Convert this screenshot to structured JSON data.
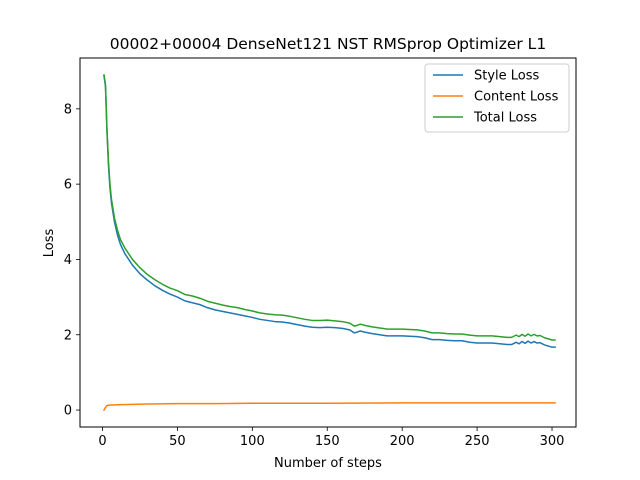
{
  "chart_data": {
    "type": "line",
    "title": "00002+00004 DenseNet121 NST RMSprop Optimizer L1",
    "xlabel": "Number of steps",
    "ylabel": "Loss",
    "xlim": [
      -15,
      316
    ],
    "ylim": [
      -0.45,
      9.35
    ],
    "xticks": [
      0,
      50,
      100,
      150,
      200,
      250,
      300
    ],
    "yticks": [
      0,
      2,
      4,
      6,
      8
    ],
    "grid": false,
    "legend_position": "top-right",
    "series": [
      {
        "name": "Style Loss",
        "color": "#1f77b4",
        "points": [
          [
            1,
            8.88
          ],
          [
            2,
            8.6
          ],
          [
            3,
            7.4
          ],
          [
            4,
            6.5
          ],
          [
            5,
            5.9
          ],
          [
            6,
            5.5
          ],
          [
            8,
            5.0
          ],
          [
            10,
            4.65
          ],
          [
            12,
            4.4
          ],
          [
            15,
            4.15
          ],
          [
            20,
            3.85
          ],
          [
            25,
            3.62
          ],
          [
            30,
            3.45
          ],
          [
            35,
            3.3
          ],
          [
            40,
            3.18
          ],
          [
            45,
            3.08
          ],
          [
            50,
            3.0
          ],
          [
            55,
            2.9
          ],
          [
            60,
            2.85
          ],
          [
            65,
            2.8
          ],
          [
            70,
            2.72
          ],
          [
            75,
            2.66
          ],
          [
            80,
            2.62
          ],
          [
            85,
            2.58
          ],
          [
            90,
            2.54
          ],
          [
            95,
            2.5
          ],
          [
            100,
            2.46
          ],
          [
            105,
            2.41
          ],
          [
            110,
            2.38
          ],
          [
            115,
            2.35
          ],
          [
            120,
            2.34
          ],
          [
            125,
            2.31
          ],
          [
            130,
            2.27
          ],
          [
            135,
            2.23
          ],
          [
            140,
            2.2
          ],
          [
            145,
            2.19
          ],
          [
            150,
            2.2
          ],
          [
            155,
            2.19
          ],
          [
            160,
            2.17
          ],
          [
            165,
            2.13
          ],
          [
            168,
            2.05
          ],
          [
            170,
            2.07
          ],
          [
            172,
            2.1
          ],
          [
            175,
            2.07
          ],
          [
            180,
            2.03
          ],
          [
            185,
            2.0
          ],
          [
            190,
            1.97
          ],
          [
            195,
            1.97
          ],
          [
            200,
            1.97
          ],
          [
            205,
            1.96
          ],
          [
            210,
            1.95
          ],
          [
            215,
            1.92
          ],
          [
            220,
            1.87
          ],
          [
            225,
            1.87
          ],
          [
            230,
            1.85
          ],
          [
            235,
            1.84
          ],
          [
            240,
            1.84
          ],
          [
            245,
            1.8
          ],
          [
            250,
            1.78
          ],
          [
            255,
            1.78
          ],
          [
            260,
            1.78
          ],
          [
            265,
            1.76
          ],
          [
            270,
            1.74
          ],
          [
            273,
            1.74
          ],
          [
            276,
            1.8
          ],
          [
            278,
            1.76
          ],
          [
            280,
            1.82
          ],
          [
            282,
            1.77
          ],
          [
            284,
            1.83
          ],
          [
            286,
            1.78
          ],
          [
            288,
            1.82
          ],
          [
            290,
            1.78
          ],
          [
            292,
            1.79
          ],
          [
            295,
            1.73
          ],
          [
            300,
            1.67
          ],
          [
            302,
            1.67
          ]
        ]
      },
      {
        "name": "Content Loss",
        "color": "#ff7f0e",
        "points": [
          [
            1,
            0.0
          ],
          [
            2,
            0.07
          ],
          [
            3,
            0.12
          ],
          [
            5,
            0.13
          ],
          [
            10,
            0.14
          ],
          [
            20,
            0.15
          ],
          [
            30,
            0.16
          ],
          [
            50,
            0.17
          ],
          [
            75,
            0.17
          ],
          [
            100,
            0.18
          ],
          [
            150,
            0.18
          ],
          [
            200,
            0.19
          ],
          [
            250,
            0.19
          ],
          [
            302,
            0.19
          ]
        ]
      },
      {
        "name": "Total Loss",
        "color": "#2ca02c",
        "points": [
          [
            1,
            8.9
          ],
          [
            2,
            8.65
          ],
          [
            3,
            7.45
          ],
          [
            4,
            6.6
          ],
          [
            5,
            6.0
          ],
          [
            6,
            5.6
          ],
          [
            8,
            5.1
          ],
          [
            10,
            4.78
          ],
          [
            12,
            4.53
          ],
          [
            15,
            4.3
          ],
          [
            20,
            4.0
          ],
          [
            25,
            3.78
          ],
          [
            30,
            3.6
          ],
          [
            35,
            3.46
          ],
          [
            40,
            3.34
          ],
          [
            45,
            3.24
          ],
          [
            50,
            3.17
          ],
          [
            55,
            3.07
          ],
          [
            60,
            3.03
          ],
          [
            65,
            2.97
          ],
          [
            70,
            2.89
          ],
          [
            75,
            2.84
          ],
          [
            80,
            2.79
          ],
          [
            85,
            2.75
          ],
          [
            90,
            2.72
          ],
          [
            95,
            2.67
          ],
          [
            100,
            2.63
          ],
          [
            105,
            2.58
          ],
          [
            110,
            2.55
          ],
          [
            115,
            2.53
          ],
          [
            120,
            2.52
          ],
          [
            125,
            2.49
          ],
          [
            130,
            2.45
          ],
          [
            135,
            2.41
          ],
          [
            140,
            2.38
          ],
          [
            145,
            2.38
          ],
          [
            150,
            2.39
          ],
          [
            155,
            2.37
          ],
          [
            160,
            2.35
          ],
          [
            165,
            2.31
          ],
          [
            168,
            2.23
          ],
          [
            170,
            2.25
          ],
          [
            172,
            2.28
          ],
          [
            175,
            2.25
          ],
          [
            180,
            2.21
          ],
          [
            185,
            2.18
          ],
          [
            190,
            2.15
          ],
          [
            195,
            2.15
          ],
          [
            200,
            2.15
          ],
          [
            205,
            2.14
          ],
          [
            210,
            2.13
          ],
          [
            215,
            2.1
          ],
          [
            220,
            2.05
          ],
          [
            225,
            2.05
          ],
          [
            230,
            2.03
          ],
          [
            235,
            2.02
          ],
          [
            240,
            2.02
          ],
          [
            245,
            1.99
          ],
          [
            250,
            1.97
          ],
          [
            255,
            1.97
          ],
          [
            260,
            1.97
          ],
          [
            265,
            1.95
          ],
          [
            270,
            1.93
          ],
          [
            273,
            1.93
          ],
          [
            276,
            1.99
          ],
          [
            278,
            1.95
          ],
          [
            280,
            2.01
          ],
          [
            282,
            1.96
          ],
          [
            284,
            2.02
          ],
          [
            286,
            1.97
          ],
          [
            288,
            2.01
          ],
          [
            290,
            1.97
          ],
          [
            292,
            1.98
          ],
          [
            295,
            1.92
          ],
          [
            300,
            1.86
          ],
          [
            302,
            1.86
          ]
        ]
      }
    ]
  }
}
